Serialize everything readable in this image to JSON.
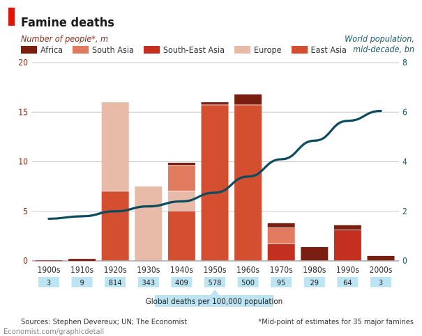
{
  "title": "Famine deaths",
  "left_axis_title": "Number of people*, m",
  "right_axis_title_line1": "World population,",
  "right_axis_title_line2": "mid-decade, bn",
  "sources": "Sources: Stephen Devereux; UN; The Economist",
  "footnote": "*Mid-point of estimates for 35 major famines",
  "url": "Economist.com/graphicdetail",
  "chart_data": {
    "type": "bar",
    "stacked": true,
    "title": "Famine deaths",
    "categories": [
      "1900s",
      "1910s",
      "1920s",
      "1930s",
      "1940s",
      "1950s",
      "1960s",
      "1970s",
      "1980s",
      "1990s",
      "2000s"
    ],
    "series": [
      {
        "name": "East Asia",
        "color": "#d44e30",
        "values": [
          0,
          0,
          7,
          0,
          5,
          15.7,
          15.7,
          0,
          0,
          0,
          0
        ]
      },
      {
        "name": "South-East Asia",
        "color": "#c3301f",
        "values": [
          0,
          0,
          0,
          0,
          0,
          0,
          0,
          1.7,
          0,
          3.1,
          0
        ]
      },
      {
        "name": "Europe",
        "color": "#e8baa8",
        "values": [
          0,
          0,
          9,
          7.5,
          2,
          0,
          0,
          0,
          0,
          0,
          0
        ]
      },
      {
        "name": "South Asia",
        "color": "#e07b5f",
        "values": [
          0,
          0,
          0,
          0,
          2.6,
          0,
          0,
          1.6,
          0,
          0,
          0
        ]
      },
      {
        "name": "Africa",
        "color": "#7a1e12",
        "values": [
          0.05,
          0.2,
          0,
          0,
          0.3,
          0.3,
          1.1,
          0.5,
          1.4,
          0.5,
          0.5
        ]
      }
    ],
    "legend_order": [
      "Africa",
      "South Asia",
      "South-East Asia",
      "Europe",
      "East Asia"
    ],
    "legend_placement": "top-left",
    "y_left": {
      "label": "Number of people*, m",
      "range": [
        0,
        20
      ],
      "ticks": [
        0,
        5,
        10,
        15,
        20
      ]
    },
    "y_right": {
      "label": "World population, mid-decade, bn",
      "range": [
        0,
        8
      ],
      "ticks": [
        0,
        2,
        4,
        6,
        8
      ]
    },
    "line": {
      "name": "World population, mid-decade, bn",
      "color": "#0d4c5e",
      "axis": "right",
      "values": [
        1.7,
        1.8,
        2.0,
        2.2,
        2.4,
        2.75,
        3.4,
        4.1,
        4.85,
        5.65,
        6.05
      ]
    },
    "deaths_per_100k": {
      "label": "Global deaths per 100,000 population",
      "values": [
        "3",
        "9",
        "814",
        "343",
        "409",
        "578",
        "500",
        "95",
        "29",
        "64",
        "3"
      ]
    },
    "grid": true
  }
}
